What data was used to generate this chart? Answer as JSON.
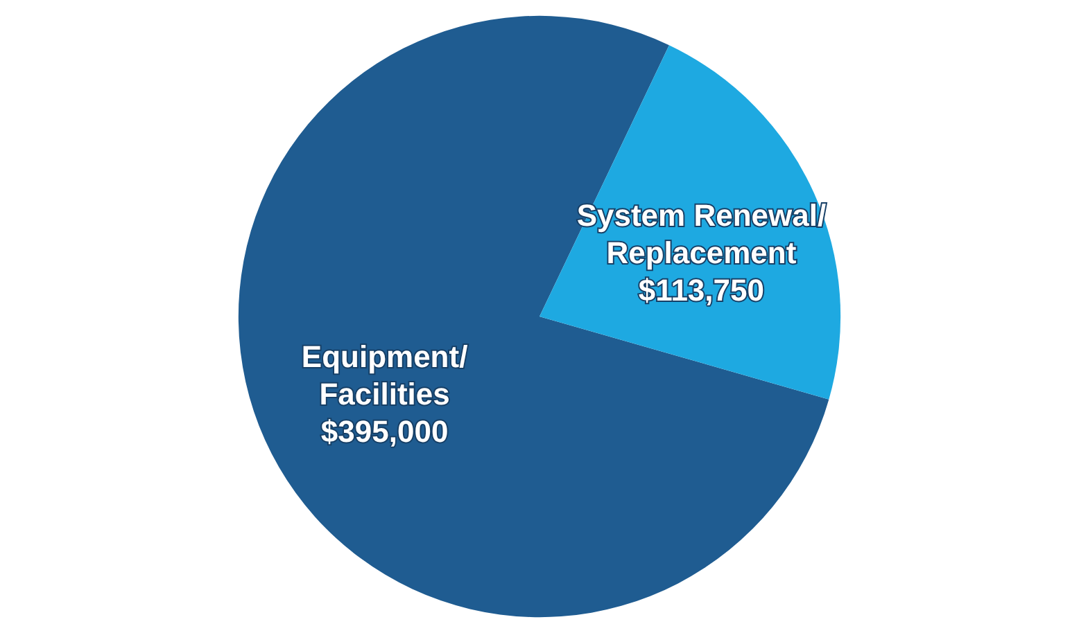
{
  "chart_data": {
    "type": "pie",
    "categories": [
      "Equipment/ Facilities",
      "System Renewal/ Replacement"
    ],
    "values": [
      395000,
      113750
    ],
    "colors": [
      "#1f5c91",
      "#1ea9e1"
    ],
    "value_labels": [
      "$395,000",
      "$113,750"
    ],
    "legend": false
  }
}
